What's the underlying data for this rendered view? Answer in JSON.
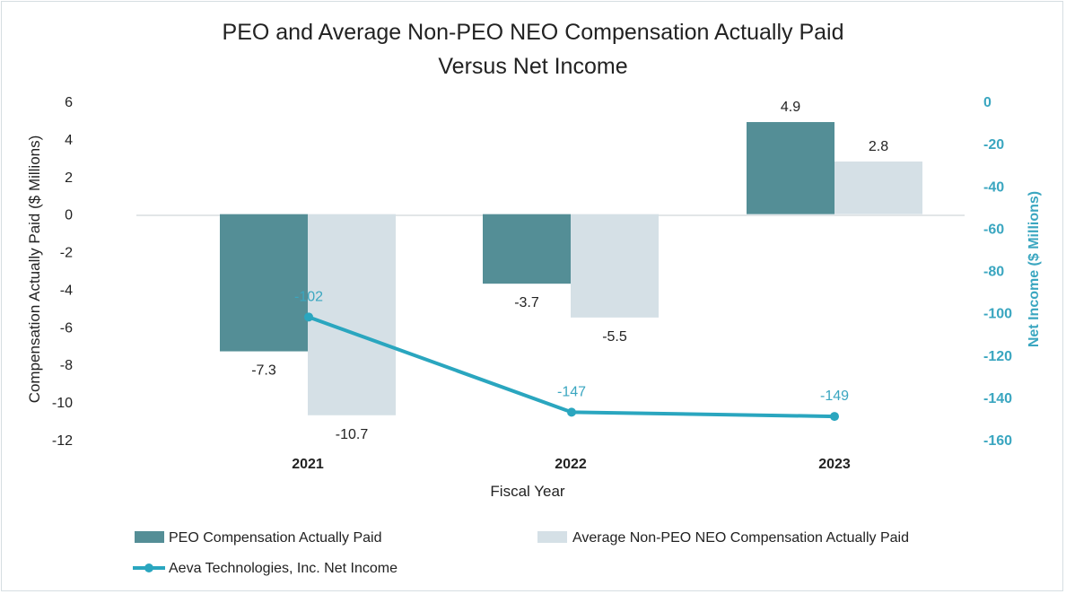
{
  "chart_data": {
    "type": "bar",
    "title": [
      "PEO and Average Non-PEO NEO Compensation Actually Paid",
      "Versus Net Income"
    ],
    "xlabel": "Fiscal Year",
    "ylabel": "Compensation Actually Paid ($ Millions)",
    "y2label": "Net Income ($ Millions)",
    "categories": [
      "2021",
      "2022",
      "2023"
    ],
    "ylim": [
      -12,
      6
    ],
    "yticks": [
      6,
      4,
      2,
      0,
      -2,
      -4,
      -6,
      -8,
      -10,
      -12
    ],
    "y2lim": [
      -160,
      0
    ],
    "y2ticks": [
      0,
      -20,
      -40,
      -60,
      -80,
      -100,
      -120,
      -140,
      -160
    ],
    "grid": false,
    "legend_position": "bottom",
    "series": [
      {
        "name": "PEO Compensation Actually Paid",
        "type": "bar",
        "axis": "left",
        "color": "#548e96",
        "values": [
          -7.3,
          -3.7,
          4.9
        ],
        "labels": [
          "-7.3",
          "-3.7",
          "4.9"
        ]
      },
      {
        "name": "Average Non-PEO NEO Compensation Actually Paid",
        "type": "bar",
        "axis": "left",
        "color": "#d5e0e6",
        "values": [
          -10.7,
          -5.5,
          2.8
        ],
        "labels": [
          "-10.7",
          "-5.5",
          "2.8"
        ]
      },
      {
        "name": "Aeva Technologies, Inc. Net Income",
        "type": "line",
        "axis": "right",
        "color": "#2aa6bf",
        "values": [
          -102,
          -147,
          -149
        ],
        "labels": [
          "-102",
          "-147",
          "-149"
        ]
      }
    ]
  }
}
